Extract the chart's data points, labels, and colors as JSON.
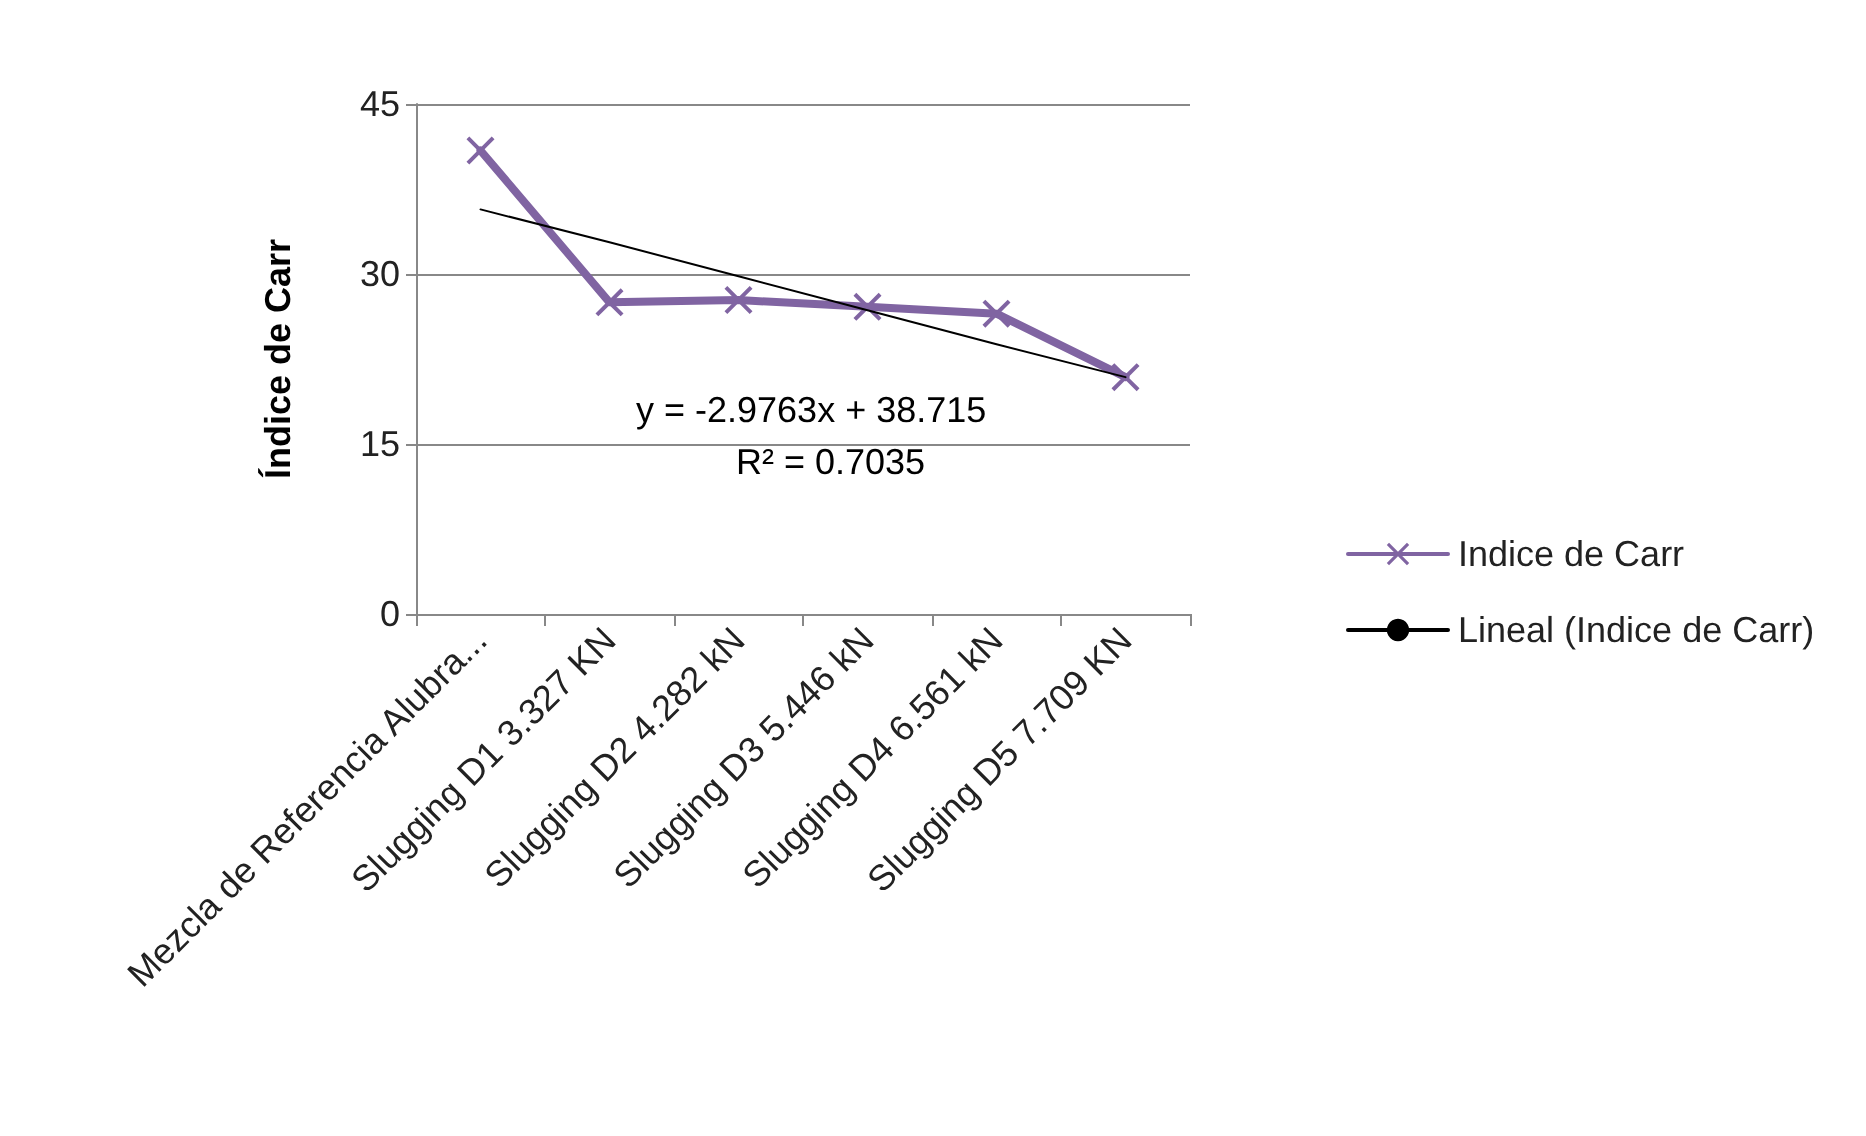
{
  "chart_data": {
    "type": "line",
    "ylabel": "Índice de Carr",
    "categories": [
      "Mezcla de Referencia Alubra...",
      "Slugging D1 3.327 KN",
      "Slugging D2 4.282 kN",
      "Slugging D3 5.446 kN",
      "Slugging D4 6.561 kN",
      "Slugging D5 7.709 KN"
    ],
    "series": [
      {
        "name": "Indice de Carr",
        "color": "#8064a2",
        "values": [
          40.9,
          27.5,
          27.7,
          27.1,
          26.5,
          20.9
        ],
        "marker": "cross"
      },
      {
        "name": "Lineal (Indice de Carr)",
        "color": "#000000",
        "type": "line",
        "marker": "none",
        "values": [
          35.7,
          32.8,
          29.8,
          26.8,
          23.8,
          20.9
        ]
      }
    ],
    "ylim": [
      0,
      45
    ],
    "yticks": [
      0,
      15,
      30,
      45
    ],
    "grid": "y",
    "legend": "right",
    "annotations": [
      "y = -2.9763x + 38.715",
      "R² = 0.7035"
    ]
  }
}
